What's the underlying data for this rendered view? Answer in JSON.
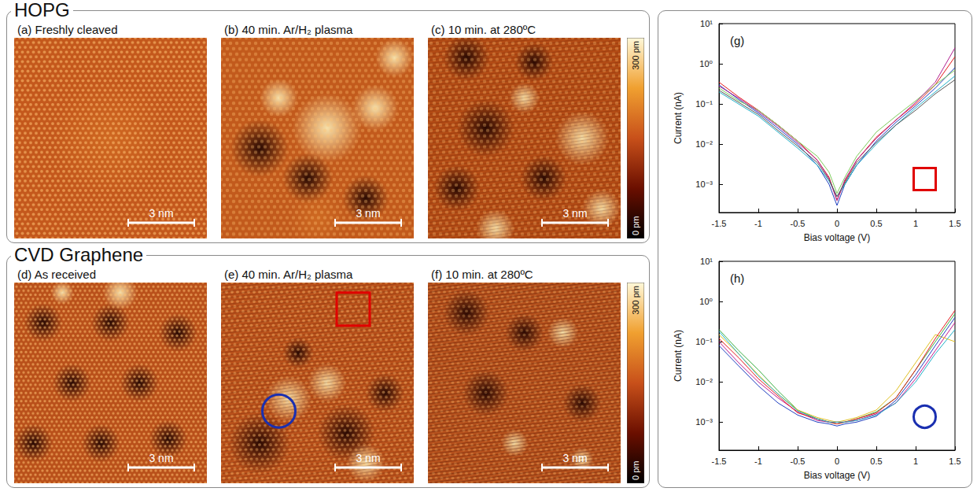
{
  "groups": [
    {
      "title": "HOPG",
      "images": [
        {
          "label": "(a) Freshly cleaved",
          "scale_bar": "3 nm"
        },
        {
          "label": "(b) 40 min. Ar/H₂ plasma",
          "scale_bar": "3 nm"
        },
        {
          "label": "(c) 10 min. at 280ºC",
          "scale_bar": "3 nm"
        }
      ],
      "colorbar": {
        "range": [
          0,
          300
        ],
        "ticks": [
          {
            "value": 0,
            "label": "0 pm"
          },
          {
            "value": 300,
            "label": "300 pm"
          }
        ]
      }
    },
    {
      "title": "CVD Graphene",
      "images": [
        {
          "label": "(d) As received",
          "scale_bar": "3 nm"
        },
        {
          "label": "(e) 40 min. Ar/H₂ plasma",
          "scale_bar": "3 nm"
        },
        {
          "label": "(f) 10 min. at 280ºC",
          "scale_bar": "3 nm"
        }
      ],
      "colorbar": {
        "range": [
          0,
          300
        ],
        "ticks": [
          {
            "value": 0,
            "label": "0 pm"
          },
          {
            "value": 300,
            "label": "300 pm"
          }
        ]
      }
    }
  ],
  "chart_data": [
    {
      "type": "line",
      "panel_label": "(g)",
      "x_label": "Bias voltage (V)",
      "y_label": "Current (nA)",
      "log": "y",
      "grid": false,
      "xlim": [
        -1.5,
        1.5
      ],
      "xticks": [
        -1.5,
        -1,
        -0.5,
        0,
        0.5,
        1,
        1.5
      ],
      "ylim": [
        0.0002,
        10
      ],
      "yticks": [
        {
          "value": 0.001,
          "label": "10⁻³"
        },
        {
          "value": 0.01,
          "label": "10⁻²"
        },
        {
          "value": 0.1,
          "label": "10⁻¹"
        },
        {
          "value": 1,
          "label": "10⁰"
        },
        {
          "value": 10,
          "label": "10¹"
        }
      ],
      "x": [
        -1.5,
        -1.25,
        -1,
        -0.75,
        -0.5,
        -0.25,
        -0.1,
        0,
        0.1,
        0.25,
        0.5,
        0.75,
        1,
        1.25,
        1.5
      ],
      "series": [
        {
          "color": "#e41a1c",
          "values": [
            0.35,
            0.15,
            0.07,
            0.03,
            0.012,
            0.004,
            0.0015,
            0.0004,
            0.0012,
            0.004,
            0.015,
            0.04,
            0.1,
            0.3,
            1.5
          ]
        },
        {
          "color": "#1f3fbf",
          "values": [
            0.3,
            0.13,
            0.06,
            0.025,
            0.01,
            0.003,
            0.001,
            0.0003,
            0.001,
            0.003,
            0.012,
            0.035,
            0.09,
            0.25,
            0.8
          ]
        },
        {
          "color": "#7ccc5a",
          "values": [
            0.25,
            0.12,
            0.07,
            0.03,
            0.012,
            0.005,
            0.002,
            0.0006,
            0.0015,
            0.005,
            0.02,
            0.05,
            0.12,
            0.3,
            0.7
          ]
        },
        {
          "color": "#20b0c8",
          "values": [
            0.2,
            0.1,
            0.05,
            0.02,
            0.008,
            0.003,
            0.0012,
            0.0005,
            0.001,
            0.003,
            0.01,
            0.03,
            0.08,
            0.2,
            0.5
          ]
        },
        {
          "color": "#b02090",
          "values": [
            0.28,
            0.14,
            0.065,
            0.028,
            0.011,
            0.004,
            0.0014,
            0.0004,
            0.0013,
            0.004,
            0.014,
            0.04,
            0.11,
            0.35,
            2.5
          ]
        },
        {
          "color": "#555555",
          "values": [
            0.22,
            0.11,
            0.055,
            0.022,
            0.009,
            0.0035,
            0.0013,
            0.0005,
            0.0011,
            0.0035,
            0.011,
            0.03,
            0.07,
            0.18,
            0.4
          ]
        }
      ]
    },
    {
      "type": "line",
      "panel_label": "(h)",
      "x_label": "Bias voltage (V)",
      "y_label": "Current (nA)",
      "log": "y",
      "grid": false,
      "xlim": [
        -1.5,
        1.5
      ],
      "xticks": [
        -1.5,
        -1,
        -0.5,
        0,
        0.5,
        1,
        1.5
      ],
      "ylim": [
        0.0002,
        10
      ],
      "yticks": [
        {
          "value": 0.001,
          "label": "10⁻³"
        },
        {
          "value": 0.01,
          "label": "10⁻²"
        },
        {
          "value": 0.1,
          "label": "10⁻¹"
        },
        {
          "value": 1,
          "label": "10⁰"
        },
        {
          "value": 10,
          "label": "10¹"
        }
      ],
      "x": [
        -1.5,
        -1.25,
        -1,
        -0.75,
        -0.5,
        -0.25,
        -0.1,
        0,
        0.1,
        0.25,
        0.5,
        0.75,
        1,
        1.25,
        1.5
      ],
      "series": [
        {
          "color": "#3cb043",
          "values": [
            0.2,
            0.06,
            0.02,
            0.006,
            0.002,
            0.0012,
            0.001,
            0.0009,
            0.001,
            0.0012,
            0.0018,
            0.004,
            0.02,
            0.1,
            0.5
          ]
        },
        {
          "color": "#c0188c",
          "values": [
            0.1,
            0.03,
            0.01,
            0.004,
            0.0018,
            0.0011,
            0.001,
            0.001,
            0.001,
            0.0011,
            0.0016,
            0.003,
            0.012,
            0.06,
            0.3
          ]
        },
        {
          "color": "#e0c020",
          "values": [
            0.15,
            0.05,
            0.015,
            0.005,
            0.002,
            0.0013,
            0.0011,
            0.001,
            0.0011,
            0.0013,
            0.002,
            0.006,
            0.03,
            0.15,
            0.1
          ]
        },
        {
          "color": "#2040c0",
          "values": [
            0.08,
            0.025,
            0.008,
            0.003,
            0.0015,
            0.001,
            0.0009,
            0.0008,
            0.0009,
            0.001,
            0.0014,
            0.0035,
            0.015,
            0.08,
            0.4
          ]
        },
        {
          "color": "#e41a1c",
          "values": [
            0.12,
            0.04,
            0.012,
            0.0045,
            0.0017,
            0.0012,
            0.001,
            0.0009,
            0.001,
            0.0012,
            0.0017,
            0.004,
            0.02,
            0.12,
            0.6
          ]
        },
        {
          "color": "#20b0c8",
          "values": [
            0.18,
            0.05,
            0.014,
            0.005,
            0.0019,
            0.0012,
            0.001,
            0.001,
            0.001,
            0.0011,
            0.0015,
            0.003,
            0.01,
            0.05,
            0.2
          ]
        }
      ]
    }
  ]
}
